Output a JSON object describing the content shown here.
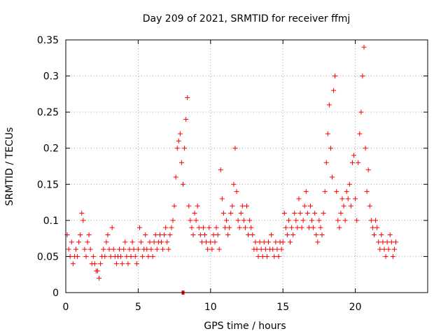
{
  "chart_data": {
    "type": "scatter",
    "title": "Day 209 of 2021, SRMTID for receiver ffmj",
    "xlabel": "GPS time / hours",
    "ylabel": "SRMTID / TECUs",
    "xlim": [
      0,
      25
    ],
    "ylim": [
      0,
      0.35
    ],
    "xticks": [
      "0",
      "5",
      "10",
      "15",
      "20"
    ],
    "yticks": [
      "0",
      "0.05",
      "0.1",
      "0.15",
      "0.2",
      "0.25",
      "0.3",
      "0.35"
    ],
    "grid": true,
    "marker": "+",
    "color": "#ff0000",
    "outlier_marker": {
      "x": 8.1,
      "y": 0.0
    },
    "series": [
      {
        "name": "SRMTID",
        "points": [
          [
            0.1,
            0.08
          ],
          [
            0.2,
            0.06
          ],
          [
            0.3,
            0.05
          ],
          [
            0.4,
            0.07
          ],
          [
            0.5,
            0.04
          ],
          [
            0.6,
            0.05
          ],
          [
            0.7,
            0.06
          ],
          [
            0.8,
            0.05
          ],
          [
            0.9,
            0.07
          ],
          [
            1.0,
            0.08
          ],
          [
            1.1,
            0.11
          ],
          [
            1.2,
            0.1
          ],
          [
            1.3,
            0.06
          ],
          [
            1.4,
            0.05
          ],
          [
            1.5,
            0.07
          ],
          [
            1.6,
            0.08
          ],
          [
            1.7,
            0.06
          ],
          [
            1.8,
            0.04
          ],
          [
            1.9,
            0.05
          ],
          [
            2.0,
            0.04
          ],
          [
            2.1,
            0.03
          ],
          [
            2.2,
            0.03
          ],
          [
            2.3,
            0.02
          ],
          [
            2.4,
            0.04
          ],
          [
            2.5,
            0.05
          ],
          [
            2.6,
            0.06
          ],
          [
            2.7,
            0.05
          ],
          [
            2.8,
            0.07
          ],
          [
            2.9,
            0.08
          ],
          [
            3.0,
            0.06
          ],
          [
            3.1,
            0.05
          ],
          [
            3.2,
            0.09
          ],
          [
            3.3,
            0.06
          ],
          [
            3.4,
            0.05
          ],
          [
            3.5,
            0.04
          ],
          [
            3.6,
            0.05
          ],
          [
            3.7,
            0.06
          ],
          [
            3.8,
            0.05
          ],
          [
            3.9,
            0.04
          ],
          [
            4.0,
            0.06
          ],
          [
            4.1,
            0.07
          ],
          [
            4.2,
            0.05
          ],
          [
            4.3,
            0.04
          ],
          [
            4.4,
            0.06
          ],
          [
            4.5,
            0.05
          ],
          [
            4.6,
            0.07
          ],
          [
            4.7,
            0.06
          ],
          [
            4.8,
            0.05
          ],
          [
            4.9,
            0.04
          ],
          [
            5.0,
            0.06
          ],
          [
            5.1,
            0.09
          ],
          [
            5.2,
            0.07
          ],
          [
            5.3,
            0.05
          ],
          [
            5.4,
            0.06
          ],
          [
            5.5,
            0.08
          ],
          [
            5.6,
            0.06
          ],
          [
            5.7,
            0.05
          ],
          [
            5.8,
            0.07
          ],
          [
            5.9,
            0.06
          ],
          [
            6.0,
            0.05
          ],
          [
            6.1,
            0.07
          ],
          [
            6.2,
            0.08
          ],
          [
            6.3,
            0.06
          ],
          [
            6.4,
            0.07
          ],
          [
            6.5,
            0.08
          ],
          [
            6.6,
            0.07
          ],
          [
            6.7,
            0.06
          ],
          [
            6.8,
            0.08
          ],
          [
            6.9,
            0.09
          ],
          [
            7.0,
            0.07
          ],
          [
            7.1,
            0.06
          ],
          [
            7.2,
            0.08
          ],
          [
            7.3,
            0.09
          ],
          [
            7.4,
            0.1
          ],
          [
            7.5,
            0.12
          ],
          [
            7.6,
            0.16
          ],
          [
            7.7,
            0.2
          ],
          [
            7.8,
            0.21
          ],
          [
            7.9,
            0.22
          ],
          [
            8.0,
            0.18
          ],
          [
            8.1,
            0.15
          ],
          [
            8.2,
            0.2
          ],
          [
            8.3,
            0.24
          ],
          [
            8.4,
            0.27
          ],
          [
            8.5,
            0.12
          ],
          [
            8.6,
            0.1
          ],
          [
            8.7,
            0.09
          ],
          [
            8.8,
            0.08
          ],
          [
            8.9,
            0.11
          ],
          [
            9.0,
            0.1
          ],
          [
            9.1,
            0.12
          ],
          [
            9.2,
            0.09
          ],
          [
            9.3,
            0.08
          ],
          [
            9.4,
            0.07
          ],
          [
            9.5,
            0.09
          ],
          [
            9.6,
            0.08
          ],
          [
            9.7,
            0.07
          ],
          [
            9.8,
            0.06
          ],
          [
            9.9,
            0.09
          ],
          [
            10.0,
            0.07
          ],
          [
            10.1,
            0.06
          ],
          [
            10.2,
            0.08
          ],
          [
            10.3,
            0.07
          ],
          [
            10.4,
            0.09
          ],
          [
            10.5,
            0.08
          ],
          [
            10.6,
            0.06
          ],
          [
            10.7,
            0.17
          ],
          [
            10.8,
            0.13
          ],
          [
            10.9,
            0.11
          ],
          [
            11.0,
            0.09
          ],
          [
            11.1,
            0.1
          ],
          [
            11.2,
            0.08
          ],
          [
            11.3,
            0.09
          ],
          [
            11.4,
            0.11
          ],
          [
            11.5,
            0.12
          ],
          [
            11.6,
            0.15
          ],
          [
            11.7,
            0.2
          ],
          [
            11.8,
            0.14
          ],
          [
            11.9,
            0.1
          ],
          [
            12.0,
            0.09
          ],
          [
            12.1,
            0.11
          ],
          [
            12.2,
            0.12
          ],
          [
            12.3,
            0.1
          ],
          [
            12.4,
            0.09
          ],
          [
            12.5,
            0.12
          ],
          [
            12.6,
            0.08
          ],
          [
            12.7,
            0.1
          ],
          [
            12.8,
            0.09
          ],
          [
            12.9,
            0.08
          ],
          [
            13.0,
            0.06
          ],
          [
            13.1,
            0.07
          ],
          [
            13.2,
            0.06
          ],
          [
            13.3,
            0.05
          ],
          [
            13.4,
            0.07
          ],
          [
            13.5,
            0.06
          ],
          [
            13.6,
            0.05
          ],
          [
            13.7,
            0.07
          ],
          [
            13.8,
            0.06
          ],
          [
            13.9,
            0.05
          ],
          [
            14.0,
            0.07
          ],
          [
            14.1,
            0.06
          ],
          [
            14.2,
            0.08
          ],
          [
            14.3,
            0.06
          ],
          [
            14.4,
            0.05
          ],
          [
            14.5,
            0.07
          ],
          [
            14.6,
            0.06
          ],
          [
            14.7,
            0.05
          ],
          [
            14.8,
            0.07
          ],
          [
            14.9,
            0.06
          ],
          [
            15.0,
            0.07
          ],
          [
            15.1,
            0.11
          ],
          [
            15.2,
            0.09
          ],
          [
            15.3,
            0.08
          ],
          [
            15.4,
            0.1
          ],
          [
            15.5,
            0.07
          ],
          [
            15.6,
            0.09
          ],
          [
            15.7,
            0.08
          ],
          [
            15.8,
            0.11
          ],
          [
            15.9,
            0.1
          ],
          [
            16.0,
            0.09
          ],
          [
            16.1,
            0.13
          ],
          [
            16.2,
            0.11
          ],
          [
            16.3,
            0.09
          ],
          [
            16.4,
            0.1
          ],
          [
            16.5,
            0.12
          ],
          [
            16.6,
            0.14
          ],
          [
            16.7,
            0.11
          ],
          [
            16.8,
            0.09
          ],
          [
            16.9,
            0.12
          ],
          [
            17.0,
            0.1
          ],
          [
            17.1,
            0.09
          ],
          [
            17.2,
            0.11
          ],
          [
            17.3,
            0.08
          ],
          [
            17.4,
            0.07
          ],
          [
            17.5,
            0.1
          ],
          [
            17.6,
            0.09
          ],
          [
            17.7,
            0.08
          ],
          [
            17.8,
            0.11
          ],
          [
            17.9,
            0.14
          ],
          [
            18.0,
            0.18
          ],
          [
            18.1,
            0.22
          ],
          [
            18.2,
            0.26
          ],
          [
            18.3,
            0.2
          ],
          [
            18.4,
            0.16
          ],
          [
            18.5,
            0.28
          ],
          [
            18.6,
            0.3
          ],
          [
            18.7,
            0.14
          ],
          [
            18.8,
            0.1
          ],
          [
            18.9,
            0.09
          ],
          [
            19.0,
            0.11
          ],
          [
            19.1,
            0.13
          ],
          [
            19.2,
            0.12
          ],
          [
            19.3,
            0.1
          ],
          [
            19.4,
            0.14
          ],
          [
            19.5,
            0.13
          ],
          [
            19.6,
            0.15
          ],
          [
            19.7,
            0.12
          ],
          [
            19.8,
            0.18
          ],
          [
            19.9,
            0.19
          ],
          [
            20.0,
            0.13
          ],
          [
            20.1,
            0.1
          ],
          [
            20.2,
            0.18
          ],
          [
            20.3,
            0.22
          ],
          [
            20.4,
            0.25
          ],
          [
            20.5,
            0.3
          ],
          [
            20.6,
            0.34
          ],
          [
            20.7,
            0.2
          ],
          [
            20.8,
            0.14
          ],
          [
            20.9,
            0.17
          ],
          [
            21.0,
            0.12
          ],
          [
            21.1,
            0.1
          ],
          [
            21.2,
            0.09
          ],
          [
            21.3,
            0.08
          ],
          [
            21.4,
            0.1
          ],
          [
            21.5,
            0.09
          ],
          [
            21.6,
            0.07
          ],
          [
            21.7,
            0.06
          ],
          [
            21.8,
            0.08
          ],
          [
            21.9,
            0.07
          ],
          [
            22.0,
            0.06
          ],
          [
            22.1,
            0.05
          ],
          [
            22.2,
            0.07
          ],
          [
            22.3,
            0.06
          ],
          [
            22.4,
            0.08
          ],
          [
            22.5,
            0.07
          ],
          [
            22.6,
            0.05
          ],
          [
            22.7,
            0.06
          ],
          [
            22.8,
            0.07
          ]
        ]
      }
    ]
  }
}
